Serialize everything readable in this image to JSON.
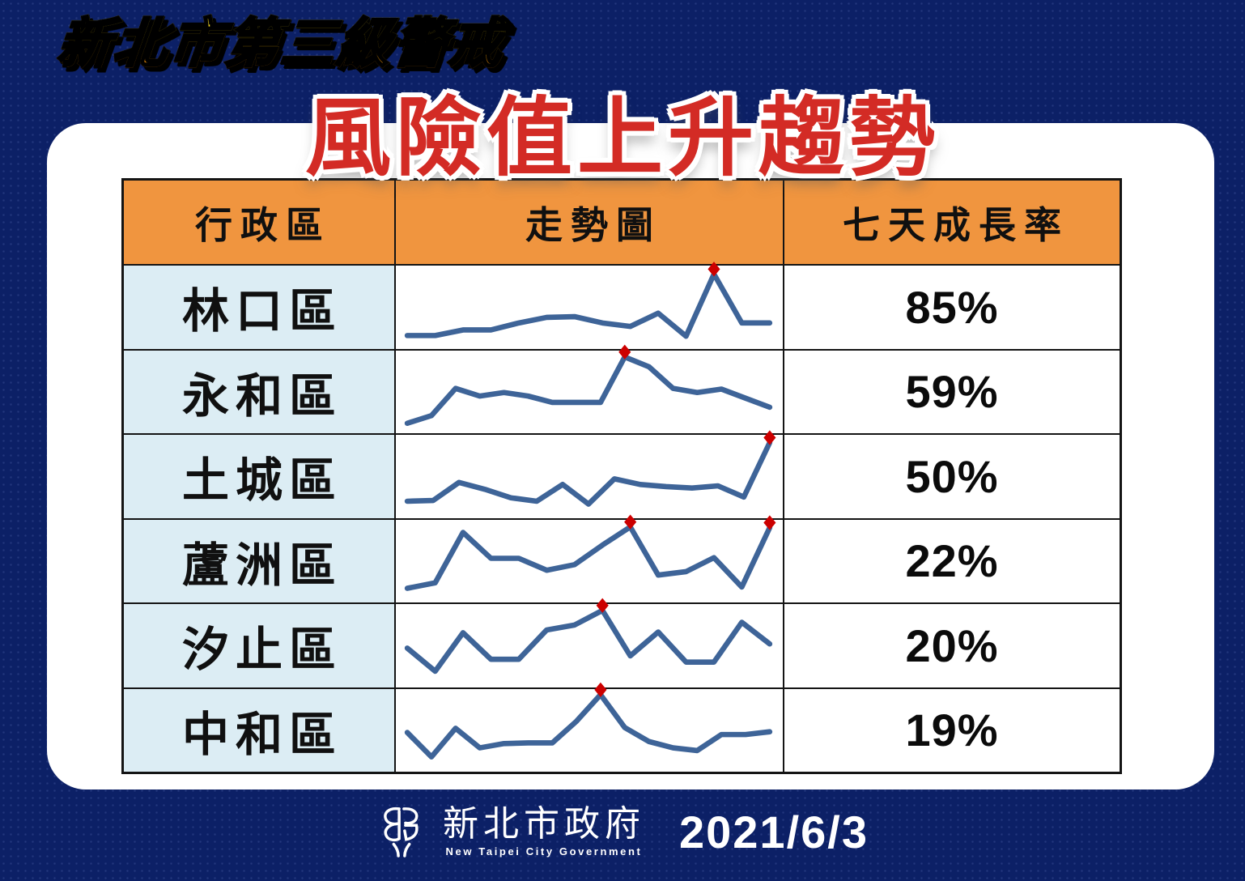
{
  "page": {
    "background_color": "#0C2066",
    "card_color": "#FFFFFF"
  },
  "banner": {
    "text": "新北市第三級警戒"
  },
  "title": {
    "text": "風險值上升趨勢",
    "color": "#D32B25"
  },
  "table": {
    "header_bg": "#F0953F",
    "district_bg": "#DCEDF4",
    "line_color": "#3E6498",
    "marker_color": "#CC0000",
    "headers": [
      "行政區",
      "走勢圖",
      "七天成長率"
    ],
    "rows": [
      {
        "district": "林口區",
        "growth": "85%",
        "spark": [
          0.7,
          0.7,
          1.5,
          1.5,
          2.5,
          3.3,
          3.4,
          2.5,
          2.0,
          3.9,
          0.6,
          9.5,
          2.5,
          2.5
        ],
        "peaks": [
          11
        ]
      },
      {
        "district": "永和區",
        "growth": "59%",
        "spark": [
          0.3,
          1.4,
          5.3,
          4.2,
          4.7,
          4.2,
          3.3,
          3.3,
          3.3,
          9.8,
          8.4,
          5.3,
          4.7,
          5.2,
          3.9,
          2.6
        ],
        "peaks": [
          9
        ]
      },
      {
        "district": "土城區",
        "growth": "50%",
        "spark": [
          1.2,
          1.3,
          3.9,
          2.9,
          1.7,
          1.2,
          3.6,
          0.8,
          4.4,
          3.6,
          3.3,
          3.1,
          3.4,
          1.8,
          9.6
        ],
        "peaks": [
          14
        ]
      },
      {
        "district": "蘆洲區",
        "growth": "22%",
        "spark": [
          0.9,
          1.7,
          8.9,
          5.2,
          5.2,
          3.5,
          4.3,
          7.1,
          9.7,
          2.8,
          3.3,
          5.3,
          1.1,
          9.6
        ],
        "peaks": [
          8,
          13
        ]
      },
      {
        "district": "汐止區",
        "growth": "20%",
        "spark": [
          4.4,
          1.1,
          6.6,
          2.8,
          2.8,
          7.0,
          7.7,
          9.8,
          3.3,
          6.7,
          2.4,
          2.4,
          8.1,
          5.0
        ],
        "peaks": [
          7
        ]
      },
      {
        "district": "中和區",
        "growth": "19%",
        "spark": [
          4.5,
          1.0,
          5.1,
          2.3,
          2.9,
          3.0,
          3.0,
          6.1,
          9.9,
          5.2,
          3.2,
          2.3,
          1.9,
          4.2,
          4.2,
          4.6
        ],
        "peaks": [
          8
        ]
      }
    ]
  },
  "footer": {
    "logo": "new-taipei-city-government-emblem",
    "org_zh": "新北市政府",
    "org_en": "New Taipei City Government",
    "date": "2021/6/3"
  },
  "chart_data": {
    "type": "line",
    "title": "風險值上升趨勢",
    "subtitle": "新北市第三級警戒",
    "date": "2021/6/3",
    "columns": [
      "行政區",
      "走勢圖",
      "七天成長率"
    ],
    "note": "sparklines have no axes; values estimated on 0-10 relative scale, red diamond = peak marker",
    "series": [
      {
        "name": "林口區",
        "seven_day_growth_pct": 85,
        "values": [
          0.7,
          0.7,
          1.5,
          1.5,
          2.5,
          3.3,
          3.4,
          2.5,
          2.0,
          3.9,
          0.6,
          9.5,
          2.5,
          2.5
        ],
        "peak_indices": [
          11
        ]
      },
      {
        "name": "永和區",
        "seven_day_growth_pct": 59,
        "values": [
          0.3,
          1.4,
          5.3,
          4.2,
          4.7,
          4.2,
          3.3,
          3.3,
          3.3,
          9.8,
          8.4,
          5.3,
          4.7,
          5.2,
          3.9,
          2.6
        ],
        "peak_indices": [
          9
        ]
      },
      {
        "name": "土城區",
        "seven_day_growth_pct": 50,
        "values": [
          1.2,
          1.3,
          3.9,
          2.9,
          1.7,
          1.2,
          3.6,
          0.8,
          4.4,
          3.6,
          3.3,
          3.1,
          3.4,
          1.8,
          9.6
        ],
        "peak_indices": [
          14
        ]
      },
      {
        "name": "蘆洲區",
        "seven_day_growth_pct": 22,
        "values": [
          0.9,
          1.7,
          8.9,
          5.2,
          5.2,
          3.5,
          4.3,
          7.1,
          9.7,
          2.8,
          3.3,
          5.3,
          1.1,
          9.6
        ],
        "peak_indices": [
          8,
          13
        ]
      },
      {
        "name": "汐止區",
        "seven_day_growth_pct": 20,
        "values": [
          4.4,
          1.1,
          6.6,
          2.8,
          2.8,
          7.0,
          7.7,
          9.8,
          3.3,
          6.7,
          2.4,
          2.4,
          8.1,
          5.0
        ],
        "peak_indices": [
          7
        ]
      },
      {
        "name": "中和區",
        "seven_day_growth_pct": 19,
        "values": [
          4.5,
          1.0,
          5.1,
          2.3,
          2.9,
          3.0,
          3.0,
          6.1,
          9.9,
          5.2,
          3.2,
          2.3,
          1.9,
          4.2,
          4.2,
          4.6
        ],
        "peak_indices": [
          8
        ]
      }
    ],
    "legend_position": "none",
    "grid": false
  }
}
